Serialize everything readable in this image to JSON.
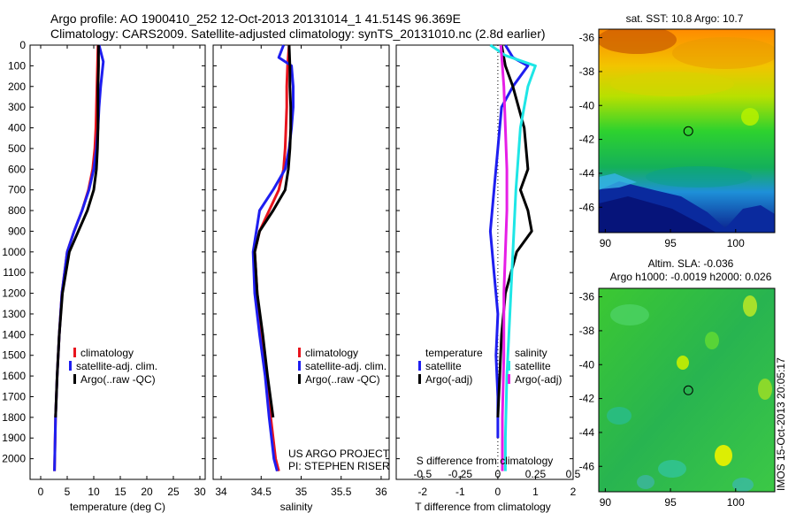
{
  "header": {
    "line1": "Argo profile: AO 1900410_252 12-Oct-2013 20131014_1 41.514S 96.369E",
    "line2": "Climatology: CARS2009. Satellite-adjusted climatology: synTS_20131010.nc (2.8d earlier)"
  },
  "credit": {
    "line1": "US ARGO PROJECT",
    "line2": "PI: STEPHEN RISER"
  },
  "stamp": "IMOS 15-Oct-2013 20:05:17",
  "colors": {
    "red": "#e8141e",
    "blue": "#1e1ef0",
    "black": "#000000",
    "cyan": "#1ee6e6",
    "magenta": "#e61ee6"
  },
  "chart_data": [
    {
      "type": "line",
      "xlabel": "temperature (deg C)",
      "ylabel": "",
      "xlim": [
        -2,
        31
      ],
      "ylim": [
        2100,
        0
      ],
      "xticks": [
        "0",
        "5",
        "10",
        "15",
        "20",
        "25",
        "30"
      ],
      "yticks": [
        "0",
        "100",
        "200",
        "300",
        "400",
        "500",
        "600",
        "700",
        "800",
        "900",
        "1000",
        "1100",
        "1200",
        "1300",
        "1400",
        "1500",
        "1600",
        "1700",
        "1800",
        "1900",
        "2000"
      ],
      "legend": [
        "climatology",
        "satellite-adj. clim.",
        "Argo(..raw -QC)"
      ],
      "series": [
        {
          "name": "climatology",
          "color": "#e8141e",
          "x": [
            10.8,
            10.7,
            10.6,
            10.5,
            10.4,
            10.2,
            9.8,
            9.0,
            7.8,
            6.3,
            5.0,
            4.0,
            3.5,
            3.1,
            2.8,
            2.6
          ],
          "y": [
            0,
            100,
            200,
            300,
            400,
            500,
            600,
            700,
            800,
            900,
            1000,
            1200,
            1400,
            1600,
            1800,
            2060
          ]
        },
        {
          "name": "satellite-adj. clim.",
          "color": "#1e1ef0",
          "x": [
            11.0,
            11.8,
            11.3,
            11.0,
            10.8,
            10.5,
            10.0,
            9.1,
            7.8,
            6.3,
            5.0,
            4.0,
            3.5,
            3.1,
            2.8,
            2.6
          ],
          "y": [
            0,
            80,
            200,
            300,
            400,
            500,
            600,
            700,
            800,
            900,
            1000,
            1200,
            1400,
            1600,
            1800,
            2060
          ]
        },
        {
          "name": "Argo(..raw -QC)",
          "color": "#000000",
          "x": [
            10.9,
            10.9,
            10.8,
            10.8,
            10.8,
            10.7,
            10.5,
            10.0,
            8.8,
            7.1,
            5.4,
            4.1,
            3.5,
            3.1,
            2.8
          ],
          "y": [
            0,
            100,
            200,
            300,
            400,
            500,
            600,
            700,
            800,
            900,
            1000,
            1200,
            1400,
            1600,
            1800
          ]
        }
      ]
    },
    {
      "type": "line",
      "xlabel": "salinity",
      "ylabel": "",
      "xlim": [
        33.9,
        36.1
      ],
      "ylim": [
        2100,
        0
      ],
      "xticks": [
        "34",
        "34.5",
        "35",
        "35.5",
        "36"
      ],
      "legend": [
        "climatology",
        "satellite-adj. clim.",
        "Argo(..raw -QC)"
      ],
      "series": [
        {
          "name": "climatology",
          "color": "#e8141e",
          "x": [
            34.85,
            34.83,
            34.82,
            34.82,
            34.81,
            34.8,
            34.78,
            34.72,
            34.6,
            34.48,
            34.42,
            34.45,
            34.5,
            34.56,
            34.62,
            34.68,
            34.72
          ],
          "y": [
            0,
            100,
            200,
            300,
            400,
            500,
            600,
            700,
            800,
            900,
            1000,
            1200,
            1400,
            1600,
            1800,
            2000,
            2060
          ]
        },
        {
          "name": "satellite-adj. clim.",
          "color": "#1e1ef0",
          "x": [
            34.78,
            34.72,
            34.88,
            34.9,
            34.9,
            34.88,
            34.85,
            34.8,
            34.65,
            34.48,
            34.4,
            34.42,
            34.48,
            34.55,
            34.6,
            34.66,
            34.7
          ],
          "y": [
            0,
            60,
            100,
            200,
            300,
            400,
            500,
            600,
            700,
            800,
            1000,
            1200,
            1400,
            1600,
            1800,
            2000,
            2060
          ]
        },
        {
          "name": "Argo(..raw -QC)",
          "color": "#000000",
          "x": [
            34.85,
            34.86,
            34.86,
            34.87,
            34.87,
            34.86,
            34.84,
            34.8,
            34.65,
            34.48,
            34.42,
            34.45,
            34.52,
            34.58,
            34.65
          ],
          "y": [
            0,
            100,
            200,
            300,
            400,
            500,
            600,
            700,
            800,
            900,
            1000,
            1200,
            1400,
            1600,
            1800
          ]
        }
      ]
    },
    {
      "type": "line",
      "xlabel": "T difference from climatology",
      "xlabel2": "S difference from climatology",
      "ylim": [
        2100,
        0
      ],
      "xlim": [
        -2.7,
        2.0
      ],
      "xticks": [
        "-2",
        "-1",
        "0",
        "1",
        "2"
      ],
      "xticks2": [
        "-0.5",
        "-0.25",
        "0",
        "0.25",
        "0.5"
      ],
      "legend": {
        "temperature_title": "temperature",
        "salinity_title": "salinity",
        "items": [
          "satellite",
          "Argo(-adj)",
          "satellite",
          "Argo(-adj)"
        ]
      },
      "series": [
        {
          "name": "temperature satellite",
          "color": "#1e1ef0",
          "x": [
            0.2,
            0.4,
            0.8,
            0.4,
            0.1,
            0.0,
            -0.1,
            -0.2,
            -0.1,
            0.0,
            -0.05,
            0.0,
            0.0
          ],
          "y": [
            0,
            60,
            100,
            200,
            300,
            500,
            700,
            900,
            1100,
            1300,
            1500,
            1700,
            1900
          ]
        },
        {
          "name": "temperature Argo(-adj)",
          "color": "#000000",
          "x": [
            0.1,
            0.2,
            0.4,
            0.7,
            0.8,
            0.6,
            0.8,
            0.9,
            0.5,
            0.2,
            0.1,
            0.05,
            0.0
          ],
          "y": [
            0,
            100,
            200,
            400,
            600,
            700,
            800,
            900,
            1000,
            1200,
            1400,
            1600,
            1800
          ]
        },
        {
          "name": "salinity satellite",
          "color": "#1ee6e6",
          "x": [
            -0.05,
            0.05,
            0.25,
            0.2,
            0.15,
            0.12,
            0.1,
            0.08,
            0.06,
            0.05,
            0.05
          ],
          "y": [
            0,
            50,
            100,
            200,
            400,
            700,
            1000,
            1300,
            1600,
            1900,
            2060
          ]
        },
        {
          "name": "salinity Argo(-adj)",
          "color": "#e61ee6",
          "x": [
            0.02,
            0.04,
            0.05,
            0.06,
            0.06,
            0.05,
            0.04,
            0.04,
            0.03,
            0.03
          ],
          "y": [
            0,
            200,
            400,
            600,
            800,
            1000,
            1200,
            1500,
            1800,
            2060
          ]
        }
      ]
    }
  ],
  "maps": [
    {
      "title": "sat. SST: 10.8  Argo: 10.7",
      "xticks": [
        "90",
        "95",
        "100"
      ],
      "yticks": [
        "-36",
        "-38",
        "-40",
        "-42",
        "-44",
        "-46"
      ],
      "xlim": [
        89.5,
        103
      ],
      "ylim": [
        -47.5,
        -35.5
      ],
      "marker": {
        "lon": 96.369,
        "lat": -41.514
      }
    },
    {
      "title1": "Altim. SLA: -0.036",
      "title2": "Argo h1000: -0.0019 h2000: 0.026",
      "xticks": [
        "90",
        "95",
        "100"
      ],
      "yticks": [
        "-36",
        "-38",
        "-40",
        "-42",
        "-44",
        "-46"
      ],
      "xlim": [
        89.5,
        103
      ],
      "ylim": [
        -47.5,
        -35.5
      ],
      "marker": {
        "lon": 96.369,
        "lat": -41.514
      }
    }
  ]
}
